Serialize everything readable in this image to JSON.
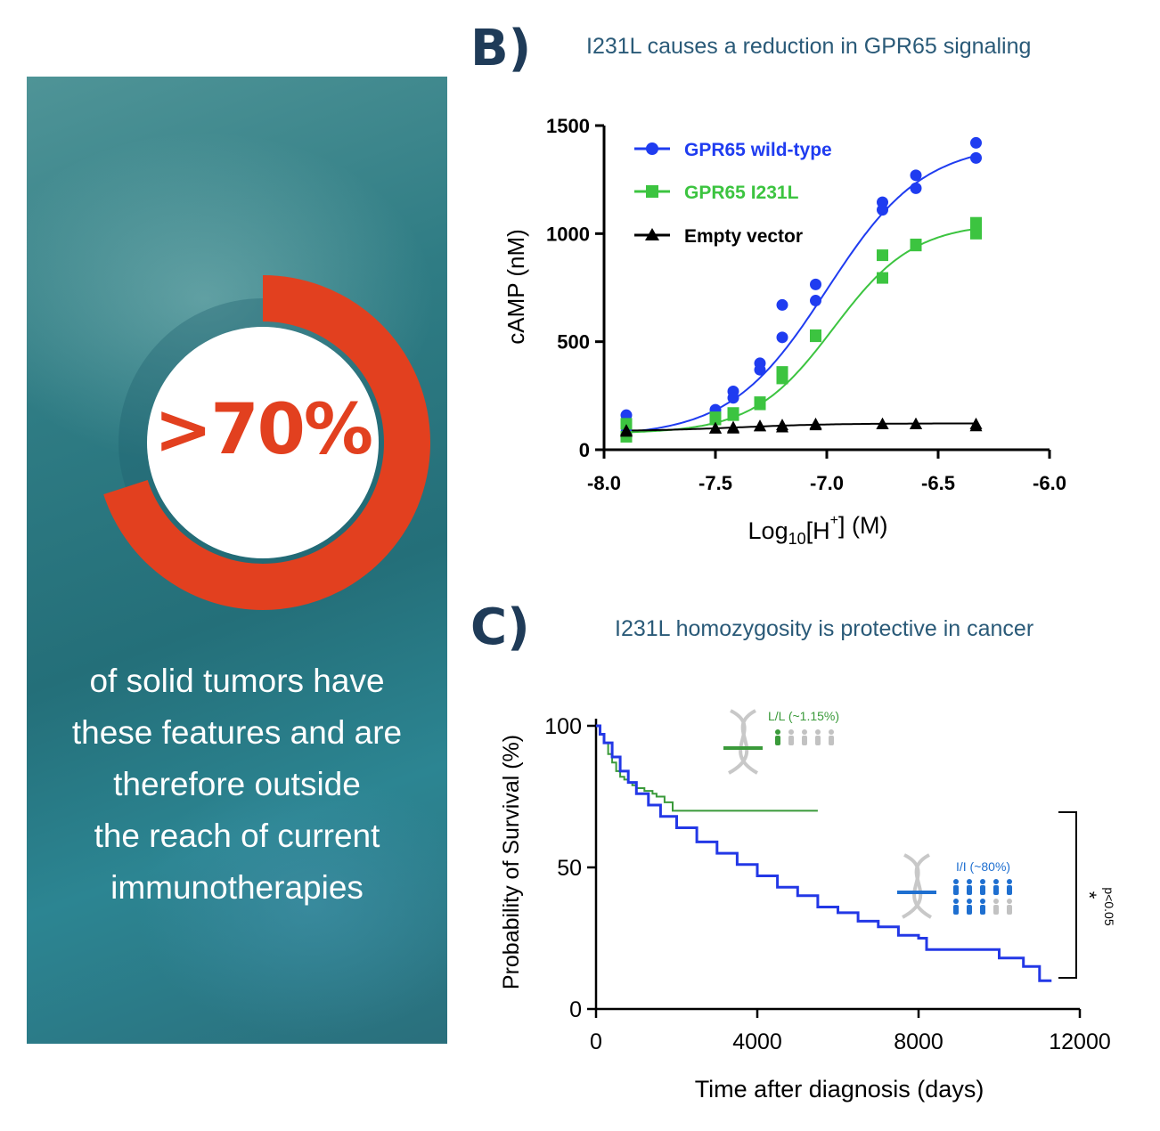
{
  "left_panel": {
    "stat_value": ">70%",
    "stat_fraction": 0.7,
    "stat_lines": [
      "of solid tumors have",
      "these features and are",
      "therefore outside",
      "the reach of current",
      "immunotherapies"
    ],
    "colors": {
      "accent": "#e2401f",
      "background": "#2f7c84"
    }
  },
  "panel_b": {
    "letter": "B)",
    "title": "I231L causes a reduction in GPR65 signaling"
  },
  "panel_c": {
    "letter": "C)",
    "title": "I231L homozygosity is protective in cancer"
  },
  "chart_data": [
    {
      "type": "scatter",
      "ylabel": "cAMP (nM)",
      "xlabel": "Log10[H+] (M)",
      "xlim": [
        -8.0,
        -6.0
      ],
      "ylim": [
        0,
        1500
      ],
      "x_ticks": [
        "-8.0",
        "-7.5",
        "-7.0",
        "-6.5",
        "-6.0"
      ],
      "y_ticks": [
        "0",
        "500",
        "1000",
        "1500"
      ],
      "legend_position": "top-left",
      "series": [
        {
          "name": "GPR65 wild-type",
          "color": "#1f3cf0",
          "marker": "circle",
          "fitted_curve": true,
          "x": [
            -7.9,
            -7.9,
            -7.5,
            -7.5,
            -7.42,
            -7.42,
            -7.3,
            -7.3,
            -7.2,
            -7.2,
            -7.05,
            -7.05,
            -6.75,
            -6.75,
            -6.6,
            -6.6,
            -6.33,
            -6.33
          ],
          "y": [
            160,
            80,
            185,
            170,
            270,
            240,
            400,
            370,
            670,
            520,
            765,
            690,
            1145,
            1110,
            1270,
            1210,
            1420,
            1350
          ]
        },
        {
          "name": "GPR65 I231L",
          "color": "#3cc440",
          "marker": "square",
          "fitted_curve": true,
          "x": [
            -7.9,
            -7.9,
            -7.5,
            -7.5,
            -7.42,
            -7.42,
            -7.3,
            -7.3,
            -7.2,
            -7.2,
            -7.05,
            -7.05,
            -6.75,
            -6.75,
            -6.6,
            -6.6,
            -6.33,
            -6.33
          ],
          "y": [
            120,
            60,
            150,
            140,
            170,
            160,
            220,
            210,
            360,
            330,
            530,
            525,
            900,
            795,
            950,
            945,
            1050,
            1000
          ]
        },
        {
          "name": "Empty vector",
          "color": "#000000",
          "marker": "triangle",
          "fitted_curve": true,
          "x": [
            -7.9,
            -7.9,
            -7.5,
            -7.5,
            -7.42,
            -7.42,
            -7.3,
            -7.3,
            -7.2,
            -7.2,
            -7.05,
            -7.05,
            -6.75,
            -6.75,
            -6.6,
            -6.6,
            -6.33,
            -6.33
          ],
          "y": [
            90,
            85,
            100,
            100,
            105,
            100,
            110,
            110,
            115,
            105,
            120,
            115,
            120,
            120,
            120,
            120,
            120,
            110
          ]
        }
      ]
    },
    {
      "type": "line",
      "ylabel": "Probability of Survival (%)",
      "xlabel": "Time after diagnosis (days)",
      "xlim": [
        0,
        12000
      ],
      "ylim": [
        0,
        100
      ],
      "x_ticks": [
        "0",
        "4000",
        "8000",
        "12000"
      ],
      "y_ticks": [
        "0",
        "50",
        "100"
      ],
      "significance": {
        "mark": "*",
        "label": "p<0.05"
      },
      "insets": [
        {
          "label": "L/L (~1.15%)",
          "color": "#3a9a3a",
          "highlighted": 1,
          "total": 5
        },
        {
          "label": "I/I (~80%)",
          "color": "#1e6fd0",
          "highlighted": 8,
          "total": 10
        }
      ],
      "series": [
        {
          "name": "L/L",
          "color": "#3a9a3a",
          "x": [
            0,
            100,
            200,
            300,
            400,
            500,
            600,
            700,
            800,
            900,
            1000,
            1200,
            1400,
            1500,
            1700,
            1900,
            2200,
            2600,
            3200,
            4000,
            5000,
            5500
          ],
          "y": [
            100,
            97,
            94,
            90,
            87,
            84,
            82,
            81,
            80,
            79,
            78,
            77,
            76,
            75,
            73,
            70,
            70,
            70,
            70,
            70,
            70,
            70
          ]
        },
        {
          "name": "I/I",
          "color": "#2338e6",
          "x": [
            0,
            100,
            200,
            400,
            600,
            800,
            1000,
            1300,
            1600,
            2000,
            2500,
            3000,
            3500,
            4000,
            4500,
            5000,
            5500,
            6000,
            6500,
            7000,
            7500,
            8000,
            8200,
            9000,
            10000,
            10400,
            10600,
            11000,
            11300
          ],
          "y": [
            100,
            97,
            94,
            89,
            84,
            80,
            76,
            72,
            68,
            64,
            59,
            55,
            51,
            47,
            43,
            40,
            36,
            34,
            31,
            29,
            26,
            25,
            21,
            21,
            18,
            18,
            15,
            10,
            10
          ]
        }
      ]
    }
  ]
}
